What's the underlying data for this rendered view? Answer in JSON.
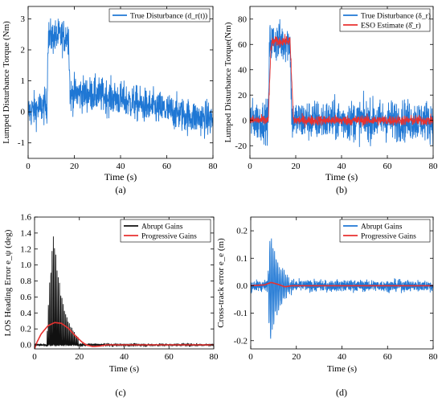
{
  "figure": {
    "panels": [
      {
        "id": "a",
        "caption": "(a)",
        "chart_data": {
          "type": "line",
          "xlabel": "Time (s)",
          "ylabel": "Lumped Disturbance Torque (Nm)",
          "xlim": [
            0,
            80
          ],
          "ylim": [
            -1.5,
            3.4
          ],
          "xticks": [
            0,
            20,
            40,
            60,
            80
          ],
          "yticks": [
            -1,
            0,
            1,
            2,
            3
          ],
          "grid": false,
          "legend_position": "top-right",
          "series": [
            {
              "name": "True Disturbance (d_r(t))",
              "color": "#1f77d4",
              "noise": 0.28,
              "points": [
                [
                  0,
                  0.0
                ],
                [
                  8.2,
                  0.2
                ],
                [
                  8.6,
                  2.4
                ],
                [
                  17.5,
                  2.45
                ],
                [
                  18.2,
                  0.5
                ],
                [
                  20,
                  0.6
                ],
                [
                  30,
                  0.55
                ],
                [
                  40,
                  0.4
                ],
                [
                  50,
                  0.2
                ],
                [
                  60,
                  0.05
                ],
                [
                  70,
                  -0.15
                ],
                [
                  80,
                  -0.25
                ]
              ]
            }
          ]
        }
      },
      {
        "id": "b",
        "caption": "(b)",
        "chart_data": {
          "type": "line",
          "xlabel": "Time (s)",
          "ylabel": "Lumped Disturbance Torque(Nm)",
          "xlim": [
            0,
            80
          ],
          "ylim": [
            -30,
            90
          ],
          "xticks": [
            0,
            20,
            40,
            60,
            80
          ],
          "yticks": [
            -20,
            0,
            20,
            40,
            60,
            80
          ],
          "grid": false,
          "legend_position": "top-right",
          "series": [
            {
              "name": "True Disturbance (δ_r)",
              "color": "#1f77d4",
              "noise": 8,
              "points": [
                [
                  0,
                  0
                ],
                [
                  8,
                  0
                ],
                [
                  8.6,
                  62
                ],
                [
                  17.5,
                  62
                ],
                [
                  18.3,
                  0
                ],
                [
                  80,
                  0
                ]
              ]
            },
            {
              "name": "ESO Estimate (δ̂_r)",
              "color": "#e8312f",
              "noise": 2,
              "points": [
                [
                  0,
                  0
                ],
                [
                  8,
                  0
                ],
                [
                  9.2,
                  58
                ],
                [
                  10,
                  62
                ],
                [
                  17.5,
                  63
                ],
                [
                  19,
                  0
                ],
                [
                  80,
                  0
                ]
              ]
            }
          ]
        }
      },
      {
        "id": "c",
        "caption": "(c)",
        "chart_data": {
          "type": "line",
          "xlabel": "Time (s)",
          "ylabel": "LOS Heading Error e_ψ (deg)",
          "xlim": [
            0,
            80
          ],
          "ylim": [
            -0.05,
            1.6
          ],
          "xticks": [
            0,
            20,
            40,
            60,
            80
          ],
          "yticks": [
            0.0,
            0.2,
            0.4,
            0.6,
            0.8,
            1.0,
            1.2,
            1.4,
            1.6
          ],
          "grid": false,
          "legend_position": "top-right",
          "series": [
            {
              "name": "Abrupt Gains",
              "color": "#111111",
              "kind": "oscillation",
              "osc_start": 5.5,
              "osc_end": 19.5,
              "peak_time": 8.5,
              "peak": 1.43,
              "period": 0.55,
              "tail_noise": 0.008
            },
            {
              "name": "Progressive Gains",
              "color": "#e8312f",
              "points": [
                [
                  0,
                  -0.05
                ],
                [
                  1,
                  0.03
                ],
                [
                  3,
                  0.14
                ],
                [
                  6,
                  0.24
                ],
                [
                  9,
                  0.28
                ],
                [
                  12,
                  0.27
                ],
                [
                  15,
                  0.21
                ],
                [
                  18,
                  0.12
                ],
                [
                  21,
                  0.04
                ],
                [
                  23,
                  0.0
                ],
                [
                  26,
                  -0.02
                ],
                [
                  29,
                  -0.015
                ],
                [
                  32,
                  0.0
                ],
                [
                  80,
                  0.0
                ]
              ]
            }
          ]
        }
      },
      {
        "id": "d",
        "caption": "(d)",
        "chart_data": {
          "type": "line",
          "xlabel": "Time (s)",
          "ylabel": "Cross-track error e_e (m)",
          "xlim": [
            0,
            80
          ],
          "ylim": [
            -0.23,
            0.25
          ],
          "xticks": [
            0,
            20,
            40,
            60,
            80
          ],
          "yticks": [
            -0.2,
            -0.1,
            0.0,
            0.1,
            0.2
          ],
          "grid": false,
          "legend_position": "top-right",
          "series": [
            {
              "name": "Abrupt Gains",
              "color": "#1f77d4",
              "kind": "oscillation",
              "osc_start": 7.5,
              "osc_end": 19,
              "peak_time": 8.5,
              "peak": 0.19,
              "period": 0.7,
              "tail_noise": 0.01
            },
            {
              "name": "Progressive Gains",
              "color": "#e8312f",
              "points": [
                [
                  0,
                  0.0
                ],
                [
                  6,
                  0.003
                ],
                [
                  9,
                  0.012
                ],
                [
                  12,
                  0.005
                ],
                [
                  15,
                  -0.004
                ],
                [
                  18,
                  0.0
                ],
                [
                  80,
                  0.0
                ]
              ]
            }
          ]
        }
      }
    ]
  }
}
